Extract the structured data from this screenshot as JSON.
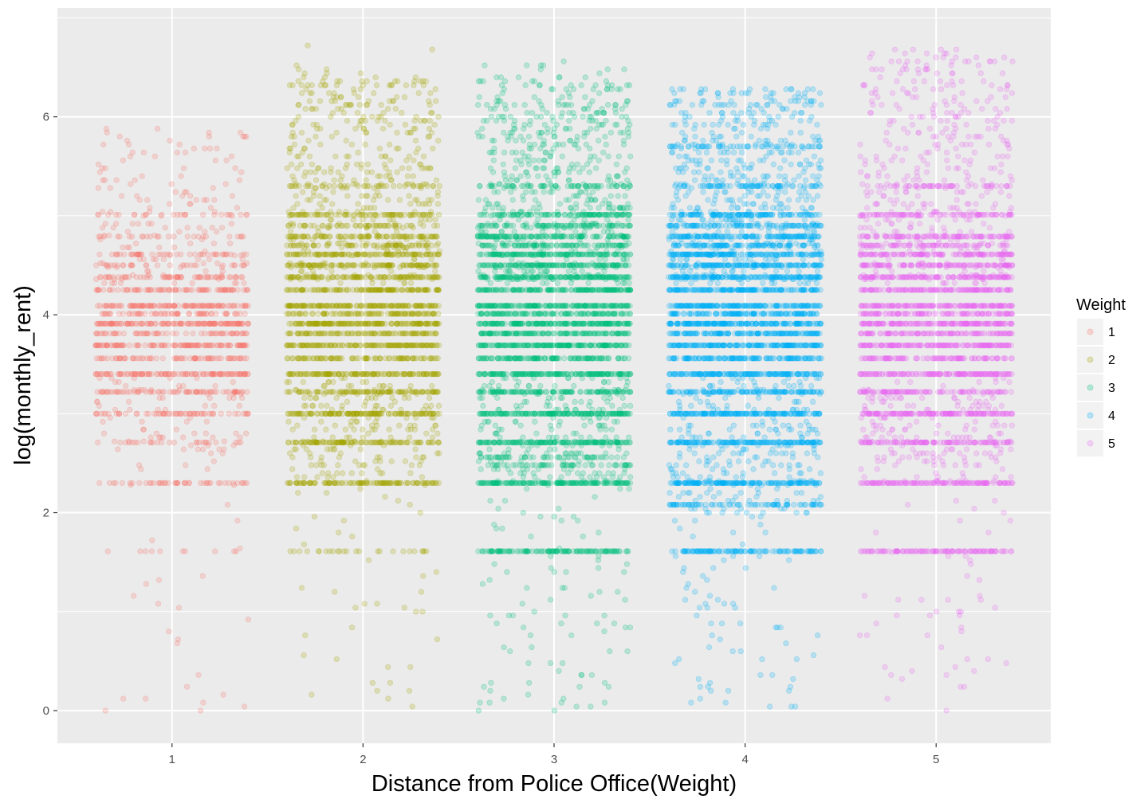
{
  "chart_data": {
    "type": "scatter",
    "title": "",
    "xlabel": "Distance from Police Office(Weight)",
    "ylabel": "log(monthly_rent)",
    "x_ticks": [
      "1",
      "2",
      "3",
      "4",
      "5"
    ],
    "y_ticks": [
      "0",
      "2",
      "4",
      "6"
    ],
    "xlim": [
      0.4,
      5.6
    ],
    "ylim": [
      -0.33,
      7.1
    ],
    "grid": true,
    "legend": {
      "title": "Weight",
      "position": "right",
      "labels": [
        "1",
        "2",
        "3",
        "4",
        "5"
      ]
    },
    "jitter_width": 0.4,
    "series": [
      {
        "name": "1",
        "x": 1,
        "color": "#F8766D",
        "bands": [
          {
            "y": 3.4,
            "n": 110
          },
          {
            "y": 3.69,
            "n": 110
          },
          {
            "y": 3.91,
            "n": 130
          },
          {
            "y": 4.09,
            "n": 110
          },
          {
            "y": 4.25,
            "n": 80
          },
          {
            "y": 4.38,
            "n": 60
          },
          {
            "y": 3.22,
            "n": 70
          },
          {
            "y": 3.0,
            "n": 60
          },
          {
            "y": 3.56,
            "n": 70
          },
          {
            "y": 3.81,
            "n": 60
          },
          {
            "y": 4.01,
            "n": 60
          },
          {
            "y": 4.61,
            "n": 45
          },
          {
            "y": 4.5,
            "n": 30
          },
          {
            "y": 4.79,
            "n": 25
          },
          {
            "y": 5.01,
            "n": 25
          },
          {
            "y": 2.3,
            "n": 45
          },
          {
            "y": 2.71,
            "n": 25
          },
          {
            "y": 1.61,
            "n": 10
          }
        ],
        "scatter": [
          {
            "min": 4.3,
            "max": 5.9,
            "n": 150
          },
          {
            "min": 2.4,
            "max": 3.4,
            "n": 80
          },
          {
            "min": 0.0,
            "max": 2.3,
            "n": 25
          }
        ]
      },
      {
        "name": "2",
        "x": 2,
        "color": "#A3A500",
        "bands": [
          {
            "y": 3.4,
            "n": 130
          },
          {
            "y": 3.69,
            "n": 140
          },
          {
            "y": 3.91,
            "n": 160
          },
          {
            "y": 4.09,
            "n": 150
          },
          {
            "y": 4.25,
            "n": 130
          },
          {
            "y": 4.38,
            "n": 110
          },
          {
            "y": 4.5,
            "n": 110
          },
          {
            "y": 4.61,
            "n": 110
          },
          {
            "y": 4.79,
            "n": 90
          },
          {
            "y": 5.01,
            "n": 80
          },
          {
            "y": 3.22,
            "n": 100
          },
          {
            "y": 3.0,
            "n": 130
          },
          {
            "y": 3.56,
            "n": 90
          },
          {
            "y": 3.81,
            "n": 100
          },
          {
            "y": 4.01,
            "n": 100
          },
          {
            "y": 4.7,
            "n": 60
          },
          {
            "y": 4.9,
            "n": 50
          },
          {
            "y": 5.3,
            "n": 40
          },
          {
            "y": 2.3,
            "n": 110
          },
          {
            "y": 2.71,
            "n": 100
          },
          {
            "y": 1.61,
            "n": 25
          }
        ],
        "scatter": [
          {
            "min": 4.3,
            "max": 6.4,
            "n": 420
          },
          {
            "min": 2.3,
            "max": 3.4,
            "n": 200
          },
          {
            "min": 0.0,
            "max": 2.3,
            "n": 40
          },
          {
            "min": 5.8,
            "max": 6.8,
            "n": 25
          }
        ]
      },
      {
        "name": "3",
        "x": 3,
        "color": "#00BF7D",
        "bands": [
          {
            "y": 3.4,
            "n": 160
          },
          {
            "y": 3.69,
            "n": 170
          },
          {
            "y": 3.91,
            "n": 180
          },
          {
            "y": 4.09,
            "n": 170
          },
          {
            "y": 4.25,
            "n": 160
          },
          {
            "y": 4.38,
            "n": 150
          },
          {
            "y": 4.5,
            "n": 140
          },
          {
            "y": 4.61,
            "n": 140
          },
          {
            "y": 4.79,
            "n": 120
          },
          {
            "y": 5.01,
            "n": 100
          },
          {
            "y": 3.22,
            "n": 120
          },
          {
            "y": 3.0,
            "n": 160
          },
          {
            "y": 3.56,
            "n": 120
          },
          {
            "y": 3.81,
            "n": 130
          },
          {
            "y": 4.01,
            "n": 120
          },
          {
            "y": 4.7,
            "n": 90
          },
          {
            "y": 4.9,
            "n": 80
          },
          {
            "y": 5.3,
            "n": 60
          },
          {
            "y": 2.3,
            "n": 160
          },
          {
            "y": 2.71,
            "n": 150
          },
          {
            "y": 1.61,
            "n": 120
          },
          {
            "y": 2.48,
            "n": 40
          },
          {
            "y": 2.56,
            "n": 40
          }
        ],
        "scatter": [
          {
            "min": 4.3,
            "max": 6.4,
            "n": 550
          },
          {
            "min": 2.3,
            "max": 3.4,
            "n": 260
          },
          {
            "min": 0.0,
            "max": 2.3,
            "n": 90
          },
          {
            "min": 5.8,
            "max": 6.6,
            "n": 30
          }
        ]
      },
      {
        "name": "4",
        "x": 4,
        "color": "#00B0F6",
        "bands": [
          {
            "y": 3.4,
            "n": 160
          },
          {
            "y": 3.69,
            "n": 170
          },
          {
            "y": 3.91,
            "n": 180
          },
          {
            "y": 4.09,
            "n": 170
          },
          {
            "y": 4.25,
            "n": 160
          },
          {
            "y": 4.38,
            "n": 160
          },
          {
            "y": 4.5,
            "n": 150
          },
          {
            "y": 4.61,
            "n": 150
          },
          {
            "y": 4.79,
            "n": 130
          },
          {
            "y": 5.01,
            "n": 110
          },
          {
            "y": 3.22,
            "n": 120
          },
          {
            "y": 3.0,
            "n": 160
          },
          {
            "y": 3.56,
            "n": 130
          },
          {
            "y": 3.81,
            "n": 140
          },
          {
            "y": 4.01,
            "n": 130
          },
          {
            "y": 4.7,
            "n": 100
          },
          {
            "y": 4.9,
            "n": 90
          },
          {
            "y": 5.3,
            "n": 70
          },
          {
            "y": 5.7,
            "n": 50
          },
          {
            "y": 2.3,
            "n": 160
          },
          {
            "y": 2.71,
            "n": 150
          },
          {
            "y": 1.61,
            "n": 110
          },
          {
            "y": 2.08,
            "n": 70
          }
        ],
        "scatter": [
          {
            "min": 4.3,
            "max": 6.3,
            "n": 560
          },
          {
            "min": 2.0,
            "max": 3.4,
            "n": 280
          },
          {
            "min": 0.0,
            "max": 2.0,
            "n": 70
          }
        ]
      },
      {
        "name": "5",
        "x": 5,
        "color": "#E76BF3",
        "bands": [
          {
            "y": 3.4,
            "n": 140
          },
          {
            "y": 3.69,
            "n": 150
          },
          {
            "y": 3.91,
            "n": 160
          },
          {
            "y": 4.09,
            "n": 150
          },
          {
            "y": 4.25,
            "n": 140
          },
          {
            "y": 4.38,
            "n": 130
          },
          {
            "y": 4.5,
            "n": 120
          },
          {
            "y": 4.61,
            "n": 120
          },
          {
            "y": 4.79,
            "n": 100
          },
          {
            "y": 5.01,
            "n": 80
          },
          {
            "y": 3.22,
            "n": 100
          },
          {
            "y": 3.0,
            "n": 140
          },
          {
            "y": 3.56,
            "n": 100
          },
          {
            "y": 3.81,
            "n": 110
          },
          {
            "y": 4.01,
            "n": 110
          },
          {
            "y": 4.7,
            "n": 70
          },
          {
            "y": 5.3,
            "n": 50
          },
          {
            "y": 2.3,
            "n": 130
          },
          {
            "y": 2.71,
            "n": 110
          },
          {
            "y": 1.61,
            "n": 110
          }
        ],
        "scatter": [
          {
            "min": 4.3,
            "max": 6.7,
            "n": 420
          },
          {
            "min": 2.3,
            "max": 3.4,
            "n": 200
          },
          {
            "min": 0.0,
            "max": 2.3,
            "n": 50
          }
        ]
      }
    ]
  }
}
